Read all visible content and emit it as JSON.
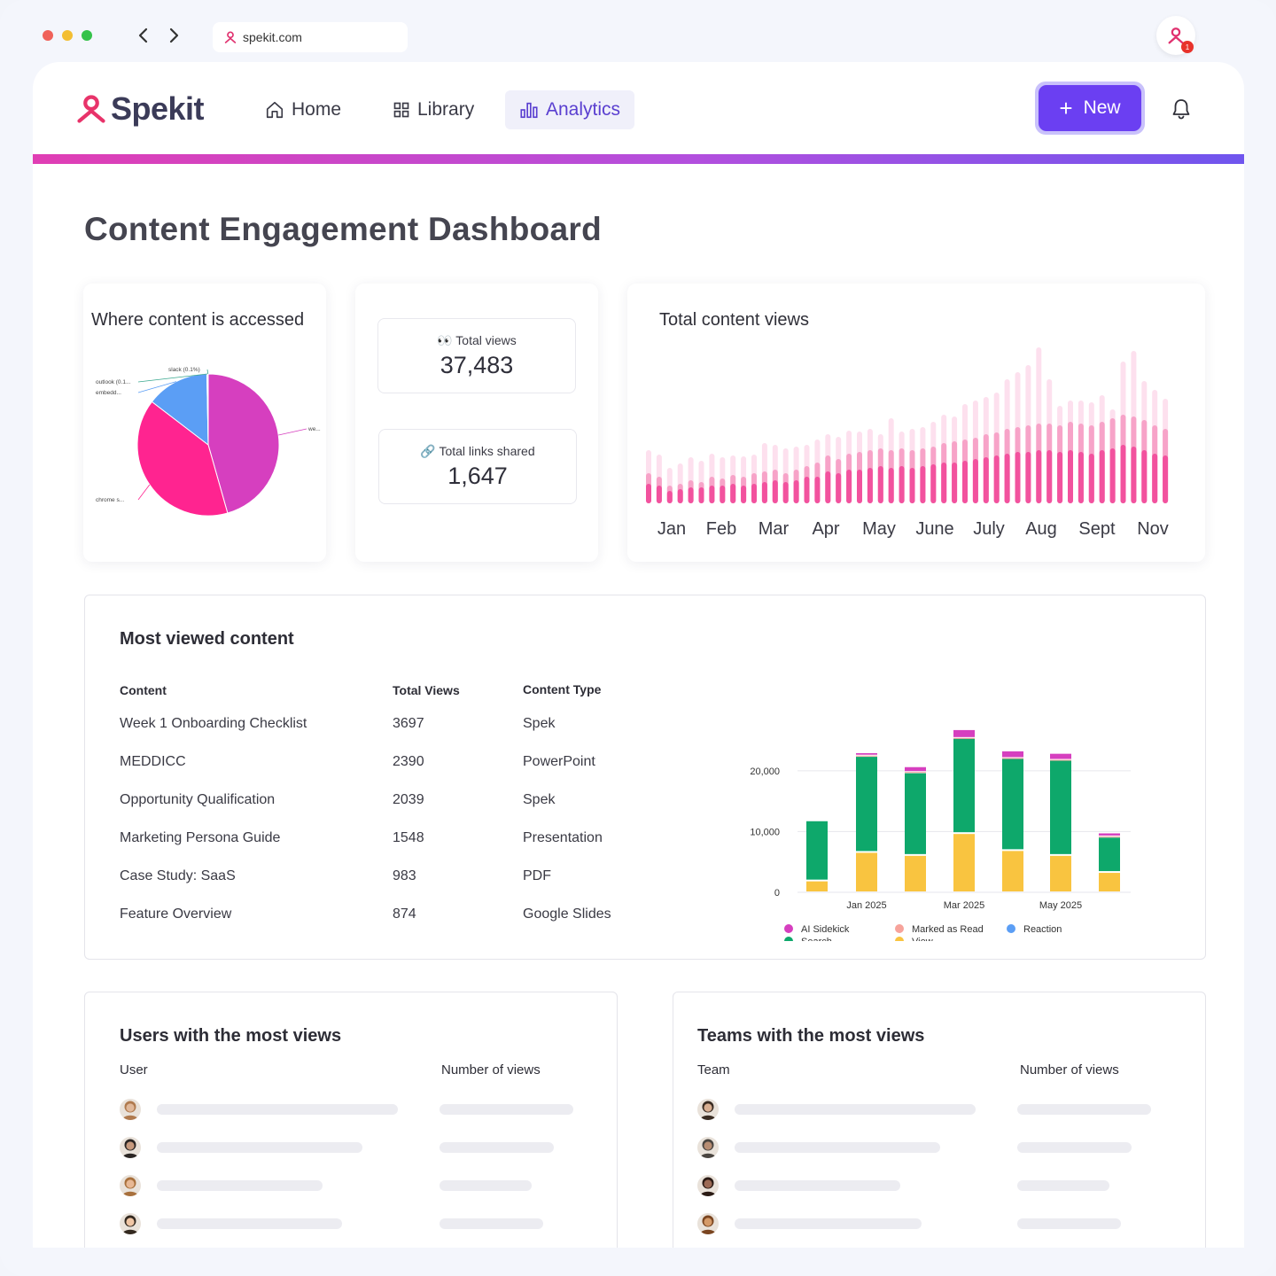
{
  "browser": {
    "url": "spekit.com",
    "extension_badge": "1",
    "colors": {
      "close": "#f0625a",
      "minimize": "#f3be33",
      "maximize": "#35c24a"
    }
  },
  "nav": {
    "logo": "Spekit",
    "items": [
      {
        "label": "Home",
        "icon": "home-icon"
      },
      {
        "label": "Library",
        "icon": "grid-icon"
      },
      {
        "label": "Analytics",
        "icon": "bar-chart-icon",
        "active": true
      }
    ],
    "new_button": "New",
    "accent": "#6b3ff2"
  },
  "page": {
    "title": "Content Engagement Dashboard"
  },
  "access_card": {
    "title": "Where content is accessed",
    "slice_labels": [
      "slack (0.1%)",
      "outlook (0.1...",
      "embedd...",
      "we...",
      "chrome s..."
    ]
  },
  "stats": {
    "total_views": {
      "icon": "eyes-icon",
      "label": "Total views",
      "value": "37,483"
    },
    "links_shared": {
      "icon": "link-icon",
      "label": "Total links shared",
      "value": "1,647"
    }
  },
  "views_card": {
    "title": "Total content views",
    "months": [
      "Jan",
      "Feb",
      "Mar",
      "Apr",
      "May",
      "June",
      "July",
      "Aug",
      "Sept",
      "Nov"
    ]
  },
  "most_viewed": {
    "title": "Most viewed content",
    "headers": {
      "content": "Content",
      "views": "Total Views",
      "type": "Content Type"
    },
    "rows": [
      {
        "content": "Week 1 Onboarding Checklist",
        "views": "3697",
        "type": "Spek"
      },
      {
        "content": "MEDDICC",
        "views": "2390",
        "type": "PowerPoint"
      },
      {
        "content": "Opportunity Qualification",
        "views": "2039",
        "type": "Spek"
      },
      {
        "content": "Marketing Persona Guide",
        "views": "1548",
        "type": "Presentation"
      },
      {
        "content": "Case Study: SaaS",
        "views": "983",
        "type": "PDF"
      },
      {
        "content": "Feature Overview",
        "views": "874",
        "type": "Google Slides"
      }
    ]
  },
  "chart_data": [
    {
      "type": "pie",
      "title": "Where content is accessed",
      "labels": [
        "we...",
        "chrome s...",
        "embedd...",
        "outlook (0.1...",
        "slack (0.1%)"
      ],
      "values": [
        45.6,
        39.8,
        14.3,
        0.2,
        0.1
      ],
      "colors": [
        "#d63fbf",
        "#ff2490",
        "#5b9ef5",
        "#3aa88f",
        "#8a8a8a"
      ]
    },
    {
      "type": "bar",
      "title": "Total content views",
      "categories": [
        "Jan",
        "Feb",
        "Mar",
        "Apr",
        "May",
        "June",
        "July",
        "Aug",
        "Sept",
        "Nov"
      ],
      "note": "mini stacked bars, no printed values",
      "colors": [
        "#f2529e",
        "#f7a3c8",
        "#fde0ee"
      ]
    },
    {
      "type": "bar",
      "stacked": true,
      "categories": [
        "",
        "Jan 2025",
        "",
        "Mar 2025",
        "",
        "May 2025",
        ""
      ],
      "yticks": [
        "0",
        "10,000",
        "20,000"
      ],
      "ylim": [
        0,
        28000
      ],
      "series": [
        {
          "name": "View",
          "color": "#f9c440",
          "values": [
            1800,
            6500,
            6000,
            9600,
            6800,
            6000,
            3200
          ]
        },
        {
          "name": "Search",
          "color": "#0ea86b",
          "values": [
            9900,
            15800,
            13600,
            15700,
            15200,
            15700,
            5800
          ]
        },
        {
          "name": "Marked as Read",
          "color": "#f7a39b",
          "values": [
            0,
            200,
            200,
            100,
            100,
            100,
            200
          ]
        },
        {
          "name": "Reaction",
          "color": "#5b9ef5",
          "values": [
            0,
            0,
            0,
            0,
            0,
            0,
            0
          ]
        },
        {
          "name": "AI Sidekick",
          "color": "#d63fbf",
          "values": [
            0,
            400,
            800,
            1300,
            1100,
            1000,
            500
          ]
        }
      ],
      "legend": [
        "AI Sidekick",
        "Marked as Read",
        "Reaction",
        "Search",
        "View"
      ]
    }
  ],
  "users": {
    "title": "Users with the most views",
    "col_user": "User",
    "col_views": "Number of views"
  },
  "teams": {
    "title": "Teams with the most views",
    "col_team": "Team",
    "col_views": "Number of views"
  }
}
